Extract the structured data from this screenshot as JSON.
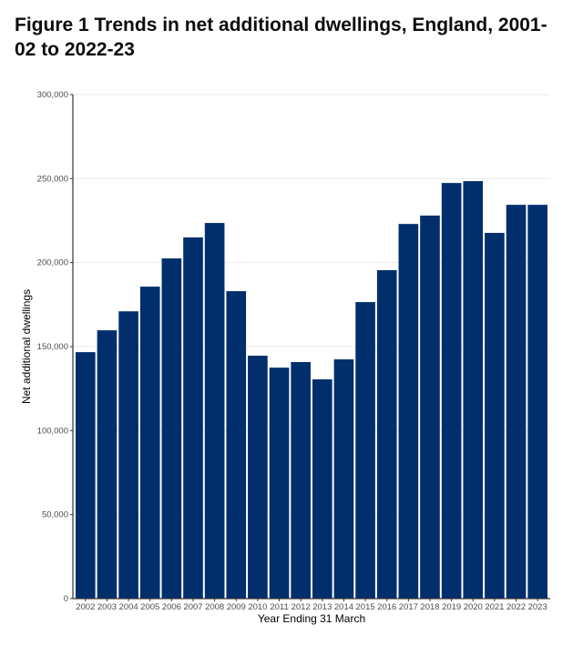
{
  "chart_data": {
    "type": "bar",
    "title": "Figure 1 Trends in net additional dwellings, England, 2001-02 to 2022-23",
    "xlabel": "Year Ending 31 March",
    "ylabel": "Net additional dwellings",
    "ylim": [
      0,
      300000
    ],
    "yticks": [
      0,
      50000,
      100000,
      150000,
      200000,
      250000,
      300000
    ],
    "ytick_labels": [
      "0",
      "50,000",
      "100,000",
      "150,000",
      "200,000",
      "250,000",
      "300,000"
    ],
    "categories": [
      "2002",
      "2003",
      "2004",
      "2005",
      "2006",
      "2007",
      "2008",
      "2009",
      "2010",
      "2011",
      "2012",
      "2013",
      "2014",
      "2015",
      "2016",
      "2017",
      "2018",
      "2019",
      "2020",
      "2021",
      "2022",
      "2023"
    ],
    "values": [
      146700,
      159700,
      171000,
      185700,
      202500,
      215000,
      223600,
      183000,
      144600,
      137500,
      140800,
      130500,
      142400,
      176500,
      195500,
      223000,
      228000,
      247400,
      248500,
      217700,
      234400,
      234400
    ],
    "bar_color": "#002f6c",
    "grid": true,
    "legend": "none"
  }
}
